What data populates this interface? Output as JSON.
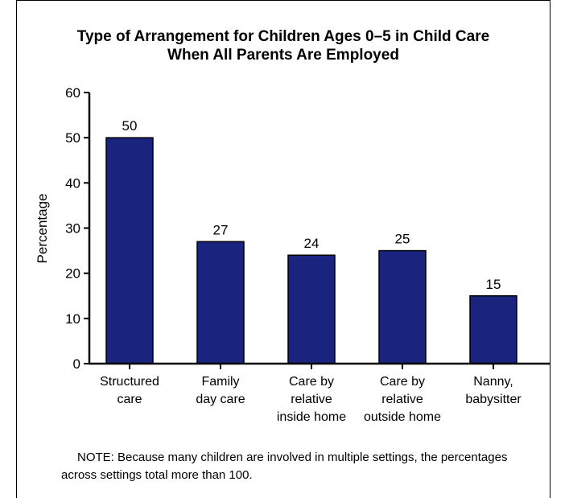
{
  "chart_data": {
    "type": "bar",
    "title": [
      "Type of Arrangement for Children Ages 0–5 in Child Care",
      "When All Parents Are Employed"
    ],
    "ylabel": "Percentage",
    "xlabel": "",
    "ylim": [
      0,
      60
    ],
    "yticks": [
      0,
      10,
      20,
      30,
      40,
      50,
      60
    ],
    "categories": [
      [
        "Structured",
        "care"
      ],
      [
        "Family",
        "day care"
      ],
      [
        "Care by",
        "relative",
        "inside home"
      ],
      [
        "Care by",
        "relative",
        "outside home"
      ],
      [
        "Nanny,",
        "babysitter"
      ]
    ],
    "values": [
      50,
      27,
      24,
      25,
      15
    ],
    "bar_color": "#1a237e",
    "grid": false,
    "legend": "none"
  },
  "note": "NOTE: Because many children are involved in multiple settings, the percentages across settings total more than 100."
}
